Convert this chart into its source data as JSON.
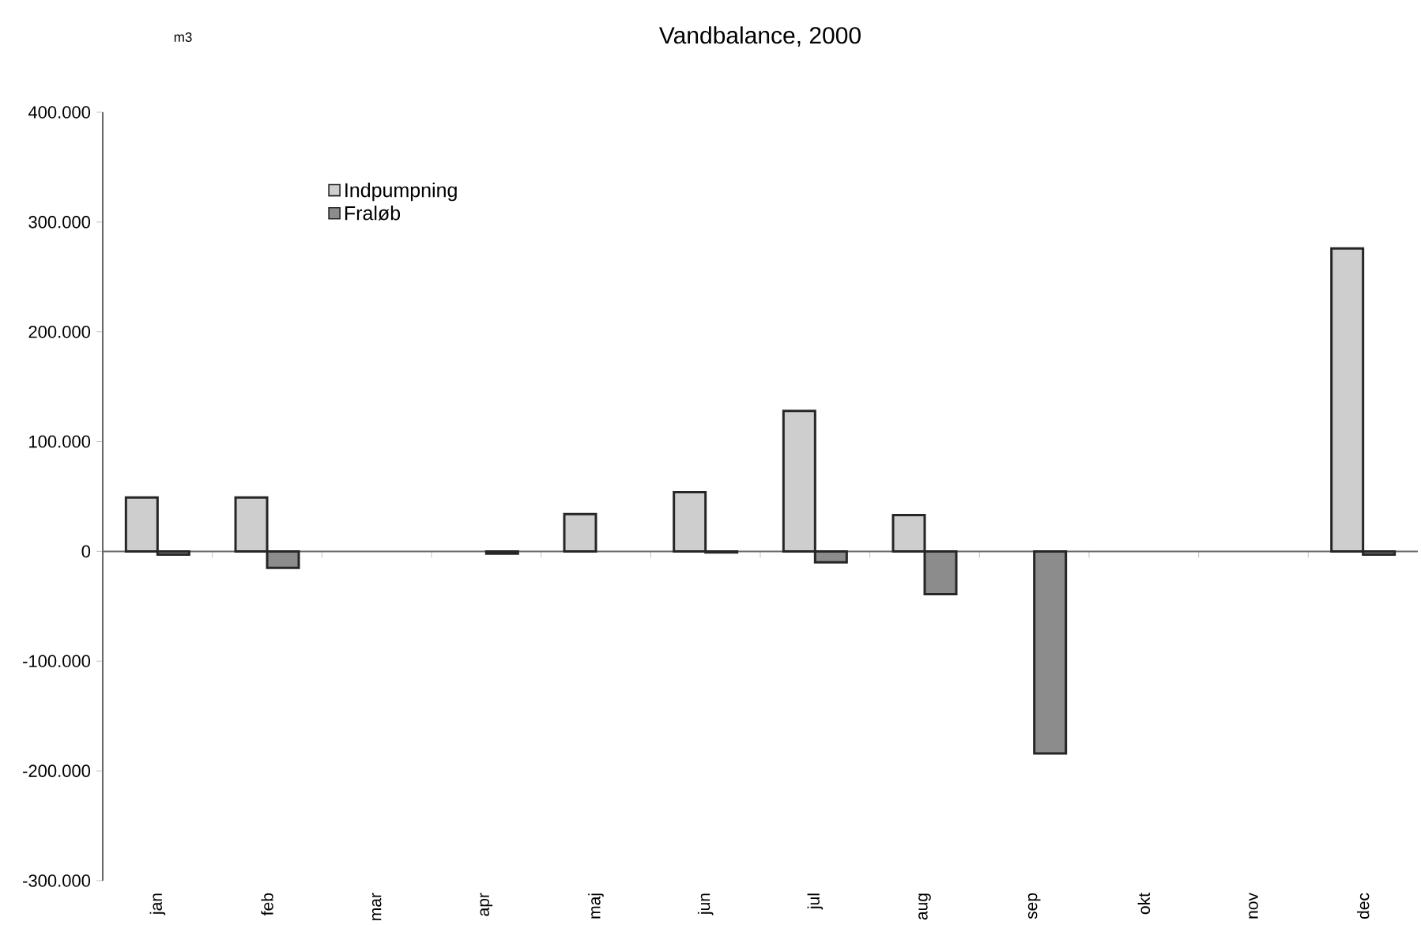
{
  "chart_data": {
    "type": "bar",
    "title": "Vandbalance, 2000",
    "ylabel": "m3",
    "categories": [
      "jan",
      "feb",
      "mar",
      "apr",
      "maj",
      "jun",
      "jul",
      "aug",
      "sep",
      "okt",
      "nov",
      "dec"
    ],
    "series": [
      {
        "name": "Indpumpning",
        "color": "#cecece",
        "values": [
          49000,
          49000,
          null,
          null,
          34000,
          54000,
          128000,
          33000,
          null,
          null,
          null,
          276000
        ]
      },
      {
        "name": "Fraløb",
        "color": "#8c8c8c",
        "values": [
          -3000,
          -15000,
          null,
          -2000,
          null,
          -1000,
          -10000,
          -39000,
          -184000,
          null,
          null,
          -3000
        ]
      }
    ],
    "ylim": [
      -300000,
      400000
    ],
    "yticks": [
      {
        "value": -300000,
        "label": "-300.000"
      },
      {
        "value": -200000,
        "label": "-200.000"
      },
      {
        "value": -100000,
        "label": "-100.000"
      },
      0,
      {
        "value": 100000,
        "label": "100.000"
      },
      {
        "value": 200000,
        "label": "200.000"
      },
      {
        "value": 300000,
        "label": "300.000"
      },
      {
        "value": 400000,
        "label": "400.000"
      }
    ],
    "legend": "top left"
  }
}
